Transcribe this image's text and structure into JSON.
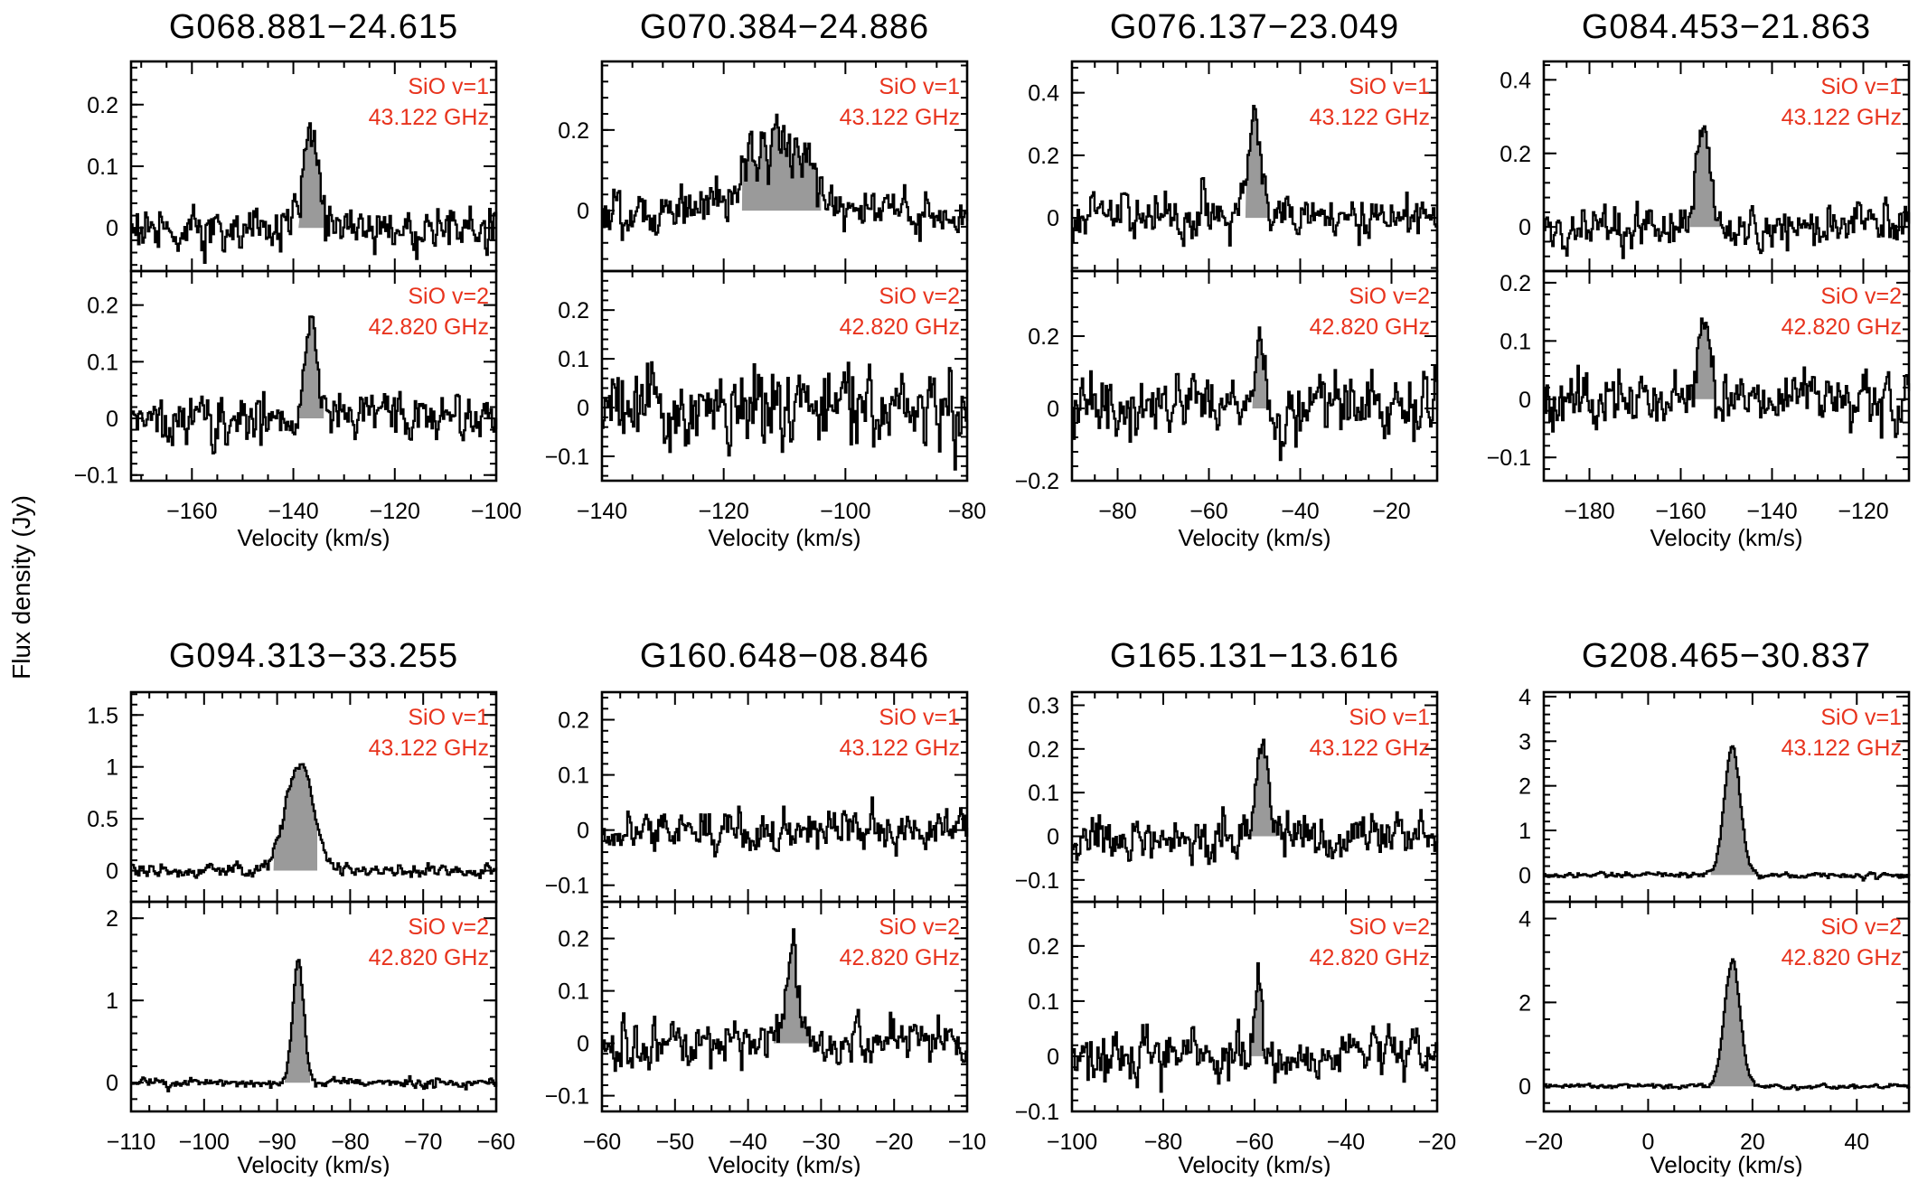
{
  "figure": {
    "ylabel": "Flux density (Jy)",
    "colors": {
      "text": "#000000",
      "line_label": "#e8331d",
      "fill": "#9a9a9a"
    }
  },
  "chart_data": [
    {
      "type": "line",
      "title": "G068.881−24.615",
      "xlabel": "Velocity (km/s)",
      "xlim": [
        -172,
        -100
      ],
      "xticks": [
        -160,
        -140,
        -120,
        -100
      ],
      "panels": [
        {
          "label_lines": [
            "SiO v=1",
            "43.122 GHz"
          ],
          "ylim": [
            -0.07,
            0.27
          ],
          "yticks": [
            0,
            0.1,
            0.2
          ],
          "line_center": -136.5,
          "line_peak": 0.16,
          "line_width": 1.5,
          "line_range": [
            -139,
            -134
          ],
          "noise": 0.022
        },
        {
          "label_lines": [
            "SiO v=2",
            "42.820 GHz"
          ],
          "ylim": [
            -0.11,
            0.26
          ],
          "yticks": [
            -0.1,
            0,
            0.1,
            0.2
          ],
          "line_center": -136.5,
          "line_peak": 0.17,
          "line_width": 1.2,
          "line_range": [
            -139,
            -134
          ],
          "noise": 0.025
        }
      ]
    },
    {
      "type": "line",
      "title": "G070.384−24.886",
      "xlabel": "Velocity (km/s)",
      "xlim": [
        -140,
        -80
      ],
      "xticks": [
        -140,
        -120,
        -100,
        -80
      ],
      "panels": [
        {
          "label_lines": [
            "SiO v=1",
            "43.122 GHz"
          ],
          "ylim": [
            -0.15,
            0.37
          ],
          "yticks": [
            0,
            0.2
          ],
          "line_center": -111,
          "line_peak": 0.22,
          "line_width": 4.5,
          "line_range": [
            -117,
            -104
          ],
          "noise": 0.03
        },
        {
          "label_lines": [
            "SiO v=2",
            "42.820 GHz"
          ],
          "ylim": [
            -0.15,
            0.28
          ],
          "yticks": [
            -0.1,
            0,
            0.1,
            0.2
          ],
          "line_center": null,
          "line_peak": 0,
          "line_width": 1,
          "line_range": null,
          "noise": 0.05
        }
      ]
    },
    {
      "type": "line",
      "title": "G076.137−23.049",
      "xlabel": "Velocity (km/s)",
      "xlim": [
        -90,
        -10
      ],
      "xticks": [
        -80,
        -60,
        -40,
        -20
      ],
      "panels": [
        {
          "label_lines": [
            "SiO v=1",
            "43.122 GHz"
          ],
          "ylim": [
            -0.17,
            0.5
          ],
          "yticks": [
            0,
            0.2,
            0.4
          ],
          "line_center": -50,
          "line_peak": 0.33,
          "line_width": 1.5,
          "line_range": [
            -52,
            -46
          ],
          "noise": 0.04
        },
        {
          "label_lines": [
            "SiO v=2",
            "42.820 GHz"
          ],
          "ylim": [
            -0.2,
            0.38
          ],
          "yticks": [
            -0.2,
            0,
            0.2
          ],
          "line_center": -49,
          "line_peak": 0.26,
          "line_width": 0.8,
          "line_range": [
            -50.5,
            -47.5
          ],
          "noise": 0.05
        }
      ]
    },
    {
      "type": "line",
      "title": "G084.453−21.863",
      "xlabel": "Velocity (km/s)",
      "xlim": [
        -190,
        -110
      ],
      "xticks": [
        -180,
        -160,
        -140,
        -120
      ],
      "panels": [
        {
          "label_lines": [
            "SiO v=1",
            "43.122 GHz"
          ],
          "ylim": [
            -0.12,
            0.45
          ],
          "yticks": [
            0,
            0.2,
            0.4
          ],
          "line_center": -155,
          "line_peak": 0.29,
          "line_width": 1.3,
          "line_range": [
            -158,
            -151
          ],
          "noise": 0.035
        },
        {
          "label_lines": [
            "SiO v=2",
            "42.820 GHz"
          ],
          "ylim": [
            -0.14,
            0.22
          ],
          "yticks": [
            -0.1,
            0,
            0.1,
            0.2
          ],
          "line_center": -155,
          "line_peak": 0.14,
          "line_width": 1.3,
          "line_range": [
            -158,
            -151
          ],
          "noise": 0.028
        }
      ]
    },
    {
      "type": "line",
      "title": "G094.313−33.255",
      "xlabel": "Velocity (km/s)",
      "xlim": [
        -110,
        -60
      ],
      "xticks": [
        -110,
        -100,
        -90,
        -80,
        -70,
        -60
      ],
      "panels": [
        {
          "label_lines": [
            "SiO v=1",
            "43.122 GHz"
          ],
          "ylim": [
            -0.3,
            1.72
          ],
          "yticks": [
            0,
            0.5,
            1,
            1.5
          ],
          "line_center": -87,
          "line_peak": 1.05,
          "line_width": 1.9,
          "line_range": [
            -90.5,
            -84.5
          ],
          "noise": 0.04
        },
        {
          "label_lines": [
            "SiO v=2",
            "42.820 GHz"
          ],
          "ylim": [
            -0.35,
            2.2
          ],
          "yticks": [
            0,
            1,
            2
          ],
          "line_center": -87.2,
          "line_peak": 1.45,
          "line_width": 0.75,
          "line_range": [
            -89,
            -85.5
          ],
          "noise": 0.035
        }
      ]
    },
    {
      "type": "line",
      "title": "G160.648−08.846",
      "xlabel": "Velocity (km/s)",
      "xlim": [
        -60,
        -10
      ],
      "xticks": [
        -60,
        -50,
        -40,
        -30,
        -20,
        -10
      ],
      "panels": [
        {
          "label_lines": [
            "SiO v=1",
            "43.122 GHz"
          ],
          "ylim": [
            -0.13,
            0.25
          ],
          "yticks": [
            -0.1,
            0,
            0.1,
            0.2
          ],
          "line_center": null,
          "line_peak": 0,
          "line_width": 1,
          "line_range": null,
          "noise": 0.022
        },
        {
          "label_lines": [
            "SiO v=2",
            "42.820 GHz"
          ],
          "ylim": [
            -0.13,
            0.27
          ],
          "yticks": [
            -0.1,
            0,
            0.1,
            0.2
          ],
          "line_center": -34,
          "line_peak": 0.18,
          "line_width": 1.0,
          "line_range": [
            -36.5,
            -31.5
          ],
          "noise": 0.028
        }
      ]
    },
    {
      "type": "line",
      "title": "G165.131−13.616",
      "xlabel": "Velocity (km/s)",
      "xlim": [
        -100,
        -20
      ],
      "xticks": [
        -100,
        -80,
        -60,
        -40,
        -20
      ],
      "panels": [
        {
          "label_lines": [
            "SiO v=1",
            "43.122 GHz"
          ],
          "ylim": [
            -0.15,
            0.33
          ],
          "yticks": [
            -0.1,
            0,
            0.1,
            0.2,
            0.3
          ],
          "line_center": -58.5,
          "line_peak": 0.21,
          "line_width": 1.2,
          "line_range": [
            -61,
            -55
          ],
          "noise": 0.028
        },
        {
          "label_lines": [
            "SiO v=2",
            "42.820 GHz"
          ],
          "ylim": [
            -0.1,
            0.28
          ],
          "yticks": [
            -0.1,
            0,
            0.1,
            0.2
          ],
          "line_center": -59.3,
          "line_peak": 0.18,
          "line_width": 0.7,
          "line_range": [
            -61,
            -58
          ],
          "noise": 0.025
        }
      ]
    },
    {
      "type": "line",
      "title": "G208.465−30.837",
      "xlabel": "Velocity (km/s)",
      "xlim": [
        -20,
        50
      ],
      "xticks": [
        -20,
        0,
        20,
        40
      ],
      "panels": [
        {
          "label_lines": [
            "SiO v=1",
            "43.122 GHz"
          ],
          "ylim": [
            -0.6,
            4.1
          ],
          "yticks": [
            0,
            1,
            2,
            3,
            4
          ],
          "line_center": 16,
          "line_peak": 2.9,
          "line_width": 1.5,
          "line_range": [
            12,
            21
          ],
          "noise": 0.035
        },
        {
          "label_lines": [
            "SiO v=2",
            "42.820 GHz"
          ],
          "ylim": [
            -0.6,
            4.4
          ],
          "yticks": [
            0,
            2,
            4
          ],
          "line_center": 16,
          "line_peak": 3.0,
          "line_width": 1.5,
          "line_range": [
            12,
            21
          ],
          "noise": 0.035
        }
      ]
    }
  ]
}
